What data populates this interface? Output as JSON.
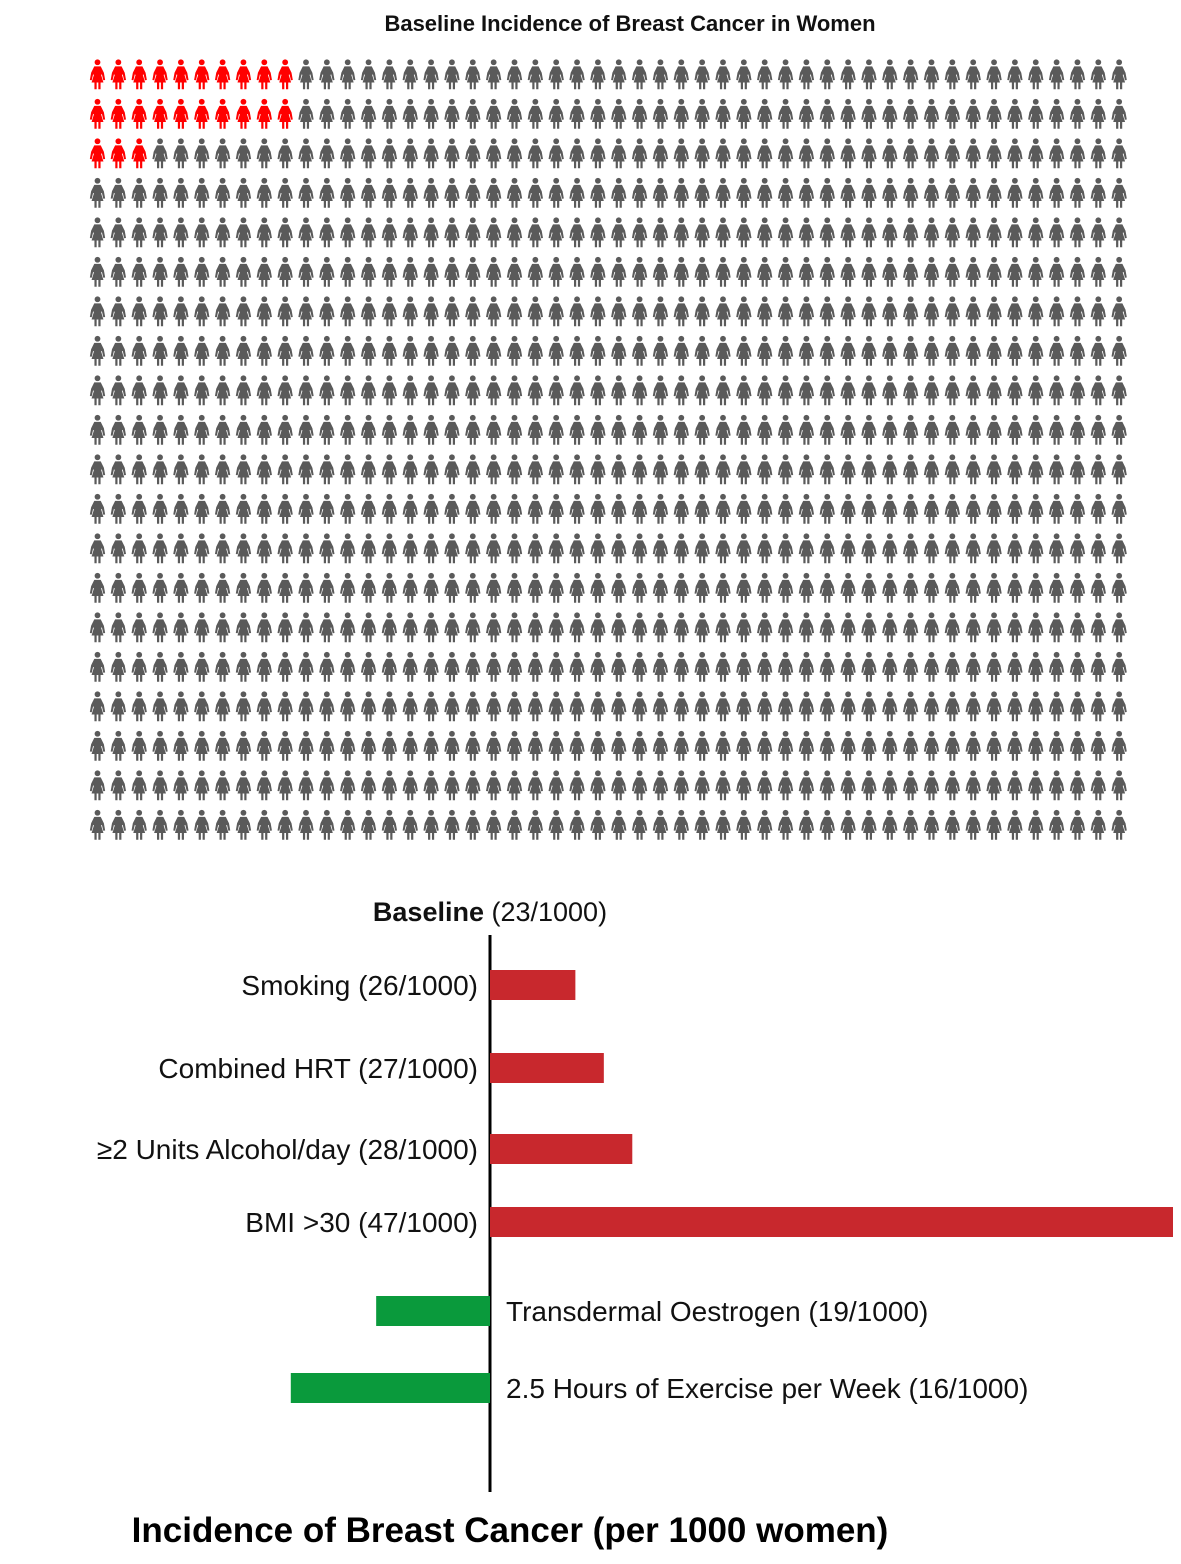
{
  "chart_data": [
    {
      "type": "pictogram",
      "title": "Baseline Incidence of Breast Cancer in Women",
      "total": 1000,
      "highlighted": 23,
      "rows": 20,
      "columns": 50,
      "highlight_color": "#ff0000",
      "base_color": "#5a5a5a",
      "icon": "woman-figure-icon"
    },
    {
      "type": "bar",
      "orientation": "horizontal",
      "baseline_label": "Baseline",
      "baseline_value_text": " (23/1000)",
      "baseline": 23,
      "categories": [
        "Smoking (26/1000)",
        "Combined HRT (27/1000)",
        "≥2 Units Alcohol/day (28/1000)",
        "BMI >30 (47/1000)",
        "Transdermal Oestrogen (19/1000)",
        "2.5 Hours of Exercise per Week (16/1000)"
      ],
      "values": [
        26,
        27,
        28,
        47,
        19,
        16
      ],
      "increase_color": "#c8282d",
      "decrease_color": "#0a9a3c",
      "xlim": [
        11,
        47
      ],
      "xlabel": "Incidence of Breast Cancer (per 1000 women)"
    }
  ]
}
